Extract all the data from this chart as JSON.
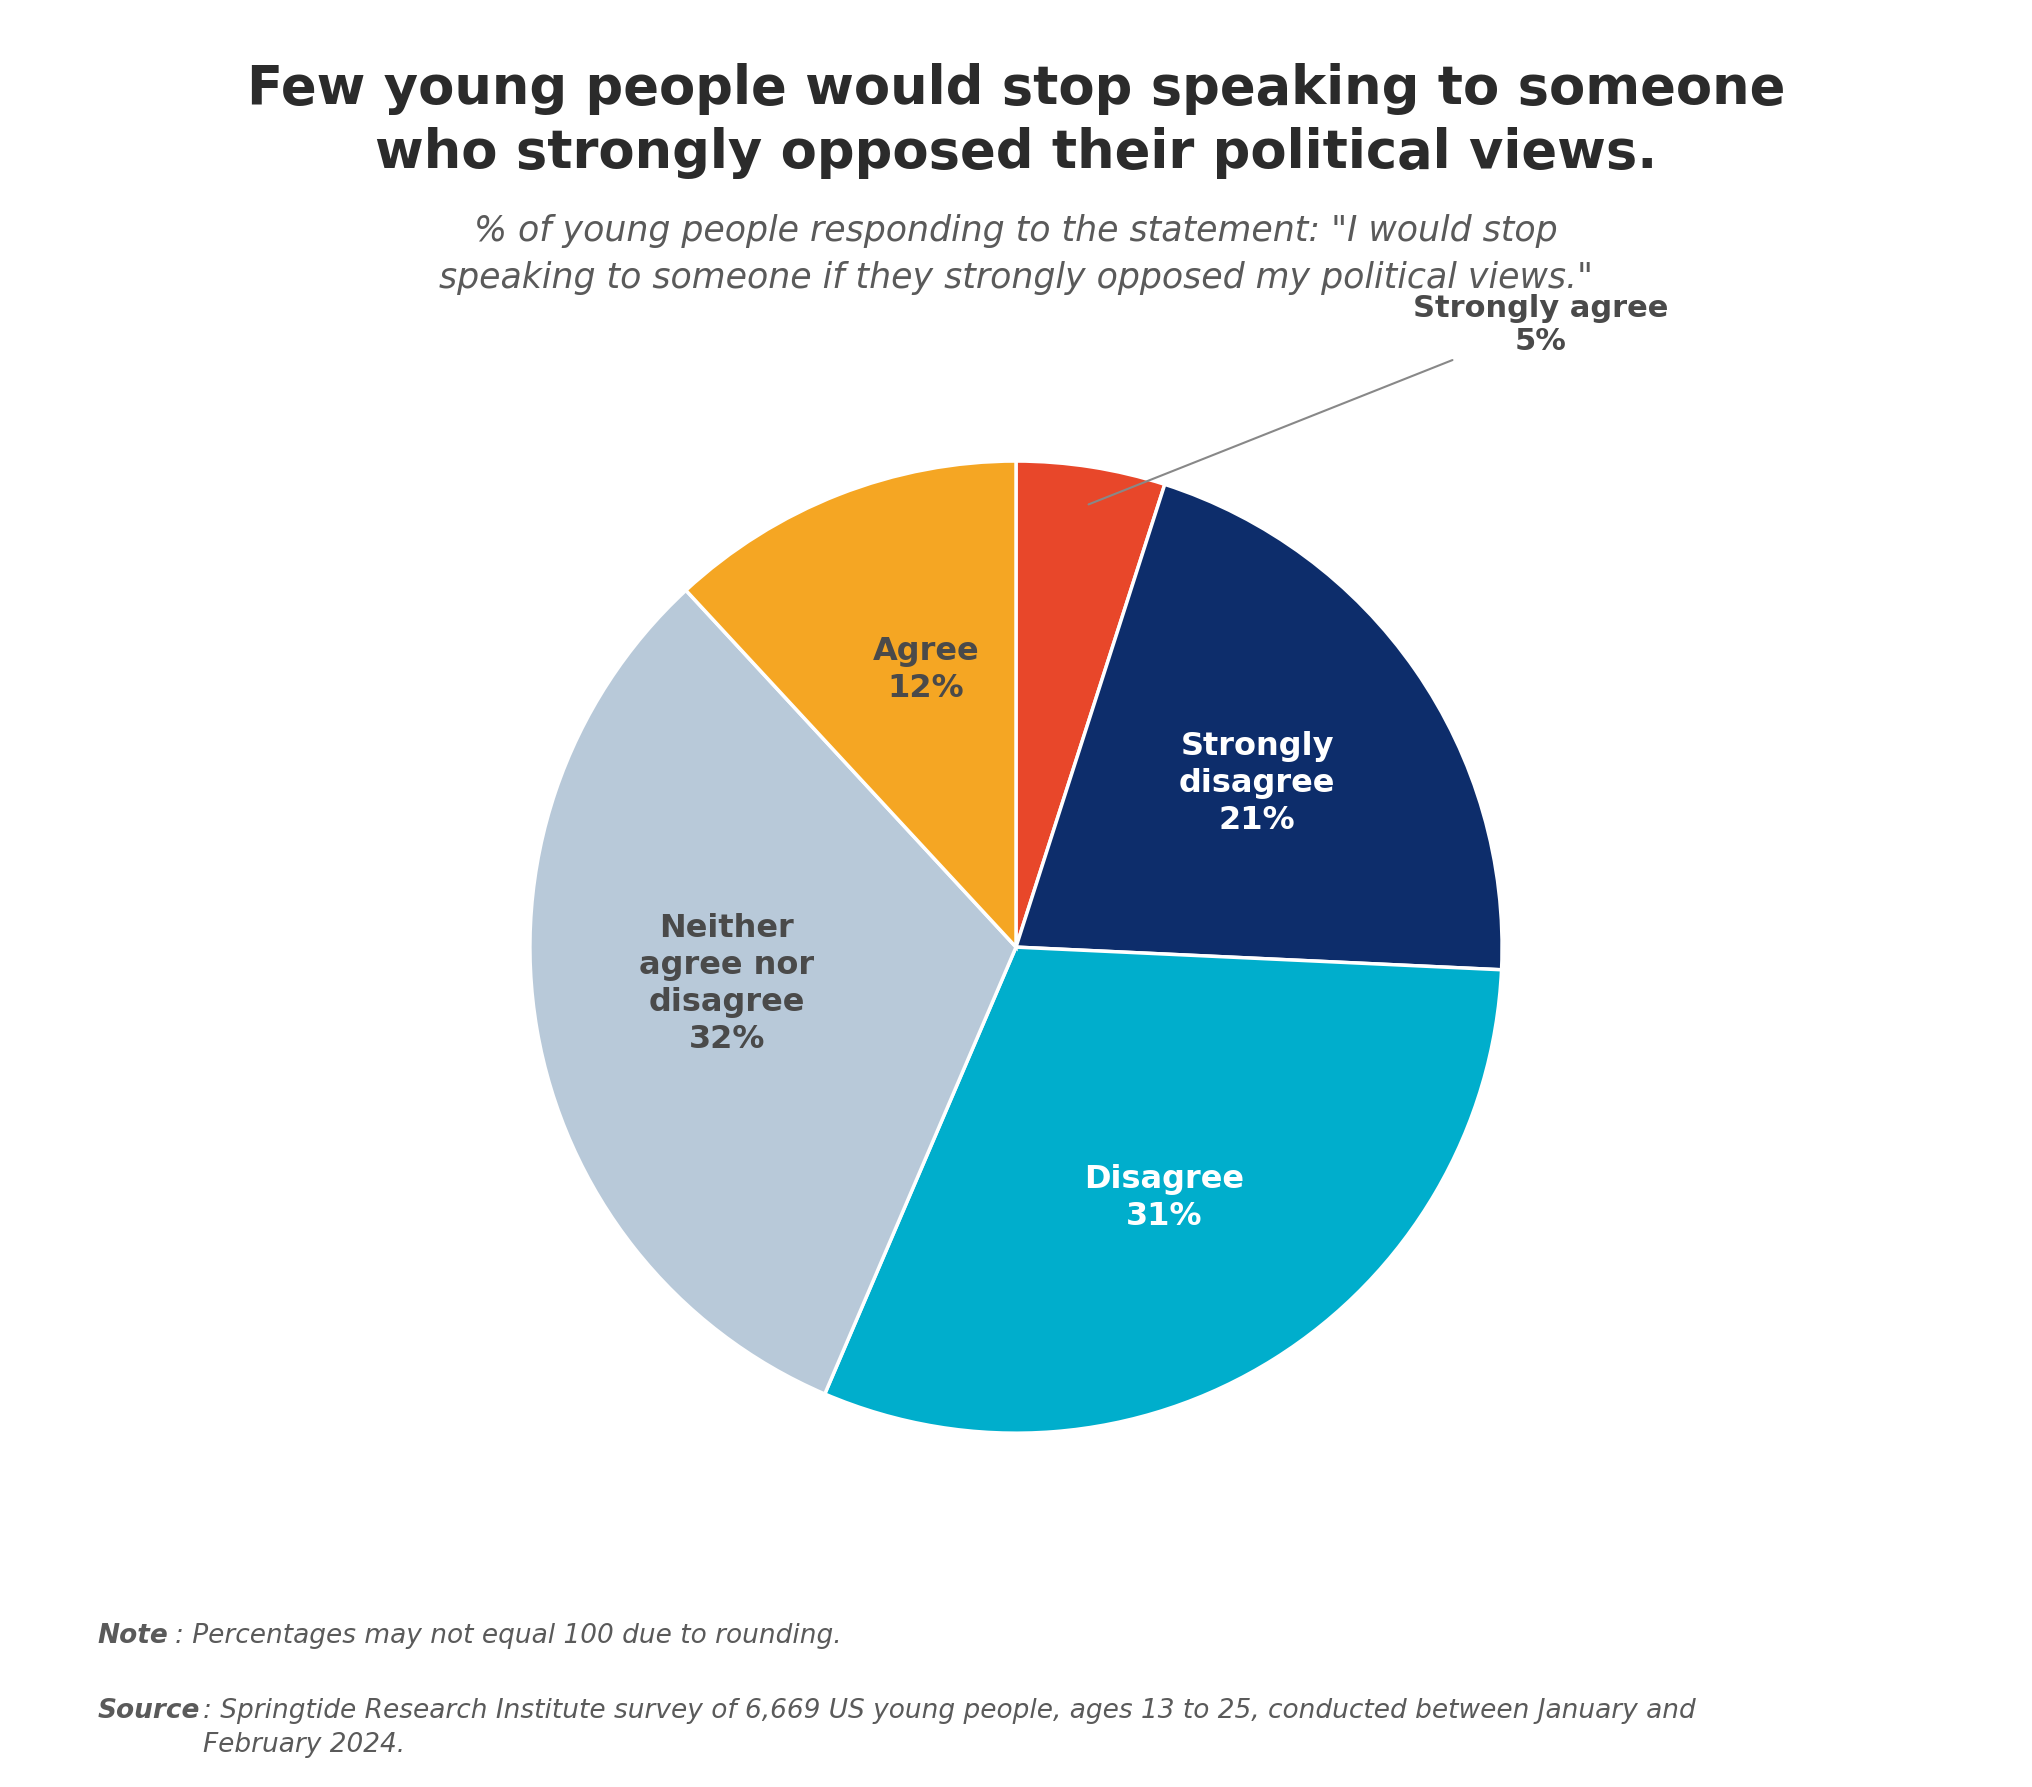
{
  "title": "Few young people would stop speaking to someone\nwho strongly opposed their political views.",
  "subtitle": "% of young people responding to the statement: \"I would stop\nspeaking to someone if they strongly opposed my political views.\"",
  "slices": [
    {
      "label": "Strongly agree",
      "pct": 5,
      "color": "#E8472A",
      "text_color": "#555555"
    },
    {
      "label": "Strongly\ndisagree",
      "pct": 21,
      "color": "#0D2D6B",
      "text_color": "#ffffff"
    },
    {
      "label": "Disagree",
      "pct": 31,
      "color": "#00AECC",
      "text_color": "#ffffff"
    },
    {
      "label": "Neither\nagree nor\ndisagree",
      "pct": 32,
      "color": "#B8C9D9",
      "text_color": "#4a4a4a"
    },
    {
      "label": "Agree",
      "pct": 12,
      "color": "#F5A623",
      "text_color": "#4a4a4a"
    }
  ],
  "note_bold": "Note",
  "note_rest": ": Percentages may not equal 100 due to rounding.",
  "source_bold": "Source",
  "source_rest": ": Springtide Research Institute survey of 6,669 US young people, ages 13 to 25, conducted between January and\nFebruary 2024.",
  "title_color": "#2b2b2b",
  "subtitle_color": "#5a5a5a",
  "footer_color": "#5a5a5a",
  "background_color": "#ffffff",
  "annotation_color": "#4a4a4a"
}
